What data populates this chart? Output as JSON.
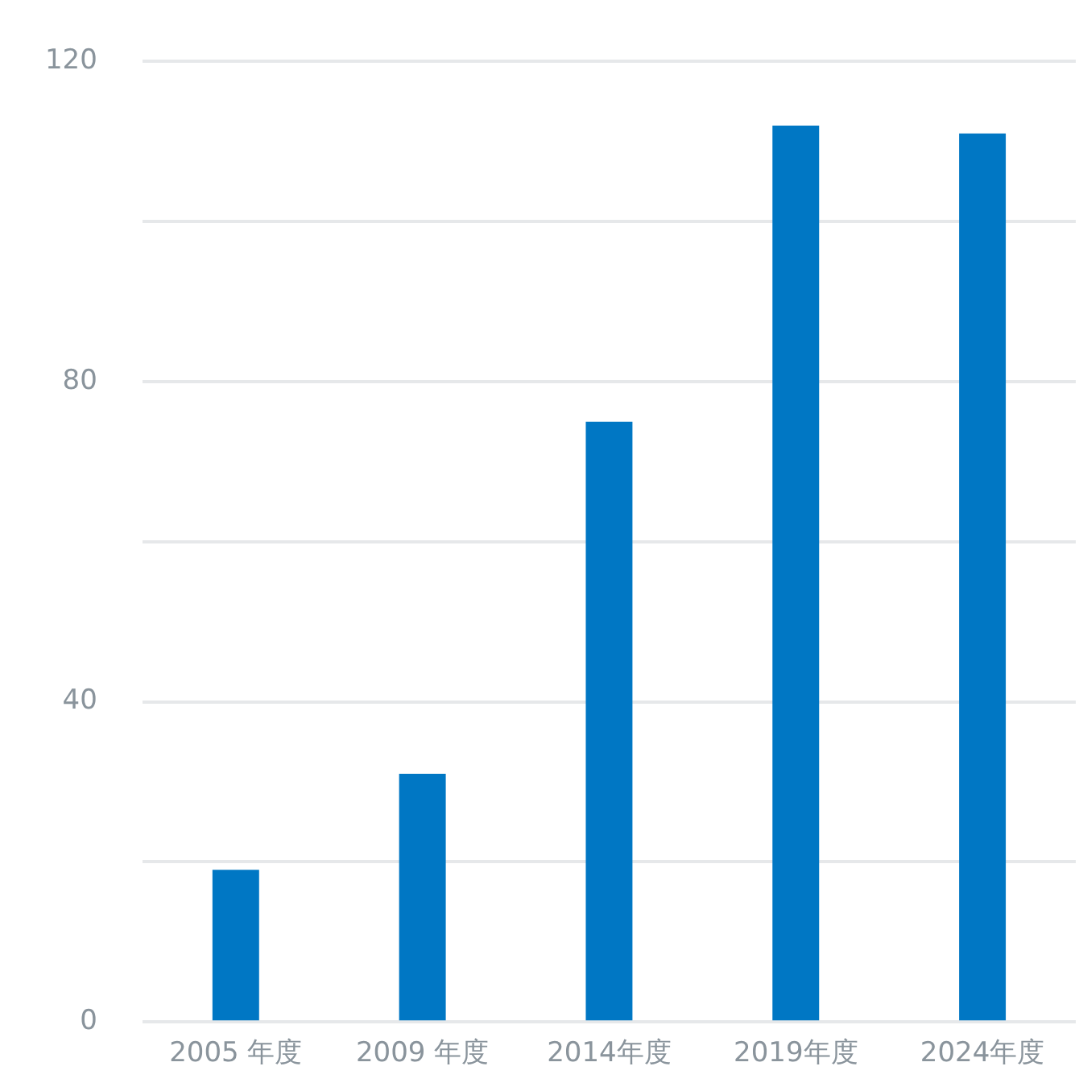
{
  "chart_data": {
    "type": "bar",
    "categories": [
      "2005 年度",
      "2009 年度",
      "2014年度",
      "2019年度",
      "2024年度"
    ],
    "values": [
      19,
      31,
      75,
      112,
      111
    ],
    "color": "#0077c4",
    "ylim": [
      0,
      120
    ],
    "yticks": [
      0,
      {
        "value": 20,
        "label": null
      },
      40,
      {
        "value": 60,
        "label": null
      },
      80,
      {
        "value": 100,
        "label": null
      },
      120
    ],
    "grid": "y"
  }
}
